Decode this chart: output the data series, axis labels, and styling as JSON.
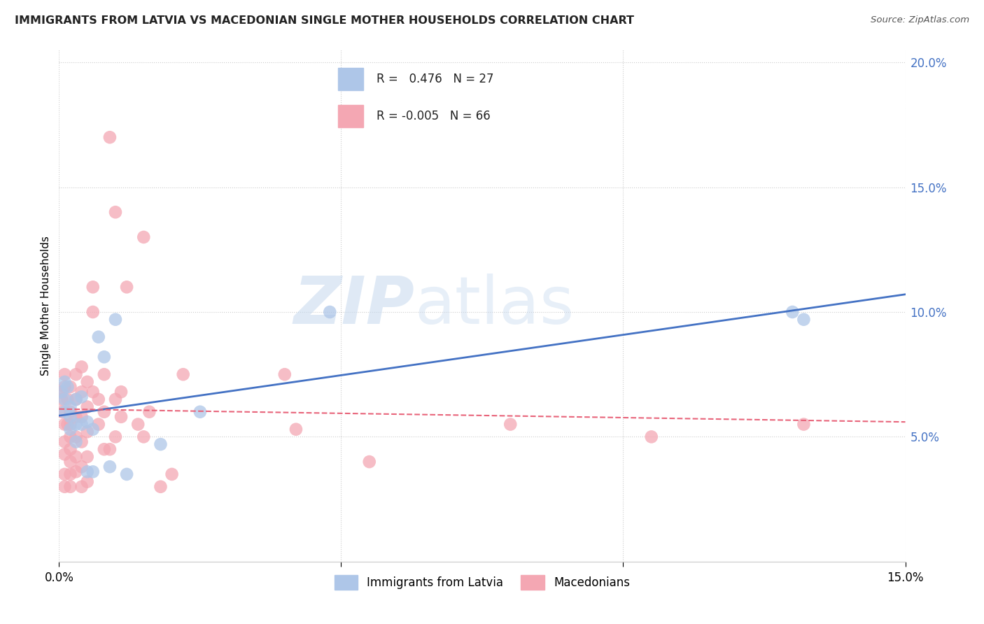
{
  "title": "IMMIGRANTS FROM LATVIA VS MACEDONIAN SINGLE MOTHER HOUSEHOLDS CORRELATION CHART",
  "source": "Source: ZipAtlas.com",
  "ylabel": "Single Mother Households",
  "xlim": [
    0.0,
    0.15
  ],
  "ylim": [
    0.0,
    0.205
  ],
  "ytick_vals": [
    0.0,
    0.05,
    0.1,
    0.15,
    0.2
  ],
  "ytick_labels": [
    "",
    "5.0%",
    "10.0%",
    "15.0%",
    "20.0%"
  ],
  "xtick_vals": [
    0.0,
    0.05,
    0.1,
    0.15
  ],
  "xtick_labels": [
    "0.0%",
    "",
    "",
    "15.0%"
  ],
  "series1_label": "Immigrants from Latvia",
  "series1_color": "#aec6e8",
  "series1_R": 0.476,
  "series1_N": 27,
  "series2_label": "Macedonians",
  "series2_color": "#f4a7b3",
  "series2_R": -0.005,
  "series2_N": 66,
  "grid_color": "#cccccc",
  "background_color": "#ffffff",
  "watermark_zip": "ZIP",
  "watermark_atlas": "atlas",
  "latvia_x": [
    0.0005,
    0.001,
    0.001,
    0.001,
    0.0015,
    0.002,
    0.002,
    0.002,
    0.003,
    0.003,
    0.003,
    0.004,
    0.004,
    0.005,
    0.005,
    0.006,
    0.006,
    0.007,
    0.008,
    0.009,
    0.01,
    0.012,
    0.018,
    0.025,
    0.048,
    0.13,
    0.132
  ],
  "latvia_y": [
    0.068,
    0.072,
    0.06,
    0.065,
    0.07,
    0.062,
    0.058,
    0.053,
    0.065,
    0.055,
    0.048,
    0.066,
    0.055,
    0.056,
    0.036,
    0.053,
    0.036,
    0.09,
    0.082,
    0.038,
    0.097,
    0.035,
    0.047,
    0.06,
    0.1,
    0.1,
    0.097
  ],
  "macedonian_x": [
    0.0003,
    0.0005,
    0.0005,
    0.001,
    0.001,
    0.001,
    0.001,
    0.001,
    0.001,
    0.001,
    0.0015,
    0.0015,
    0.002,
    0.002,
    0.002,
    0.002,
    0.002,
    0.002,
    0.002,
    0.002,
    0.003,
    0.003,
    0.003,
    0.003,
    0.003,
    0.003,
    0.004,
    0.004,
    0.004,
    0.004,
    0.004,
    0.004,
    0.005,
    0.005,
    0.005,
    0.005,
    0.005,
    0.006,
    0.006,
    0.006,
    0.007,
    0.007,
    0.008,
    0.008,
    0.008,
    0.009,
    0.009,
    0.01,
    0.01,
    0.01,
    0.011,
    0.011,
    0.012,
    0.014,
    0.015,
    0.015,
    0.016,
    0.018,
    0.02,
    0.022,
    0.04,
    0.042,
    0.055,
    0.08,
    0.105,
    0.132
  ],
  "macedonian_y": [
    0.068,
    0.065,
    0.06,
    0.055,
    0.07,
    0.075,
    0.048,
    0.043,
    0.035,
    0.03,
    0.065,
    0.055,
    0.07,
    0.06,
    0.055,
    0.05,
    0.045,
    0.04,
    0.035,
    0.03,
    0.075,
    0.065,
    0.058,
    0.05,
    0.042,
    0.036,
    0.078,
    0.068,
    0.058,
    0.048,
    0.038,
    0.03,
    0.072,
    0.062,
    0.052,
    0.042,
    0.032,
    0.11,
    0.1,
    0.068,
    0.065,
    0.055,
    0.075,
    0.06,
    0.045,
    0.17,
    0.045,
    0.14,
    0.065,
    0.05,
    0.068,
    0.058,
    0.11,
    0.055,
    0.13,
    0.05,
    0.06,
    0.03,
    0.035,
    0.075,
    0.075,
    0.053,
    0.04,
    0.055,
    0.05,
    0.055
  ]
}
